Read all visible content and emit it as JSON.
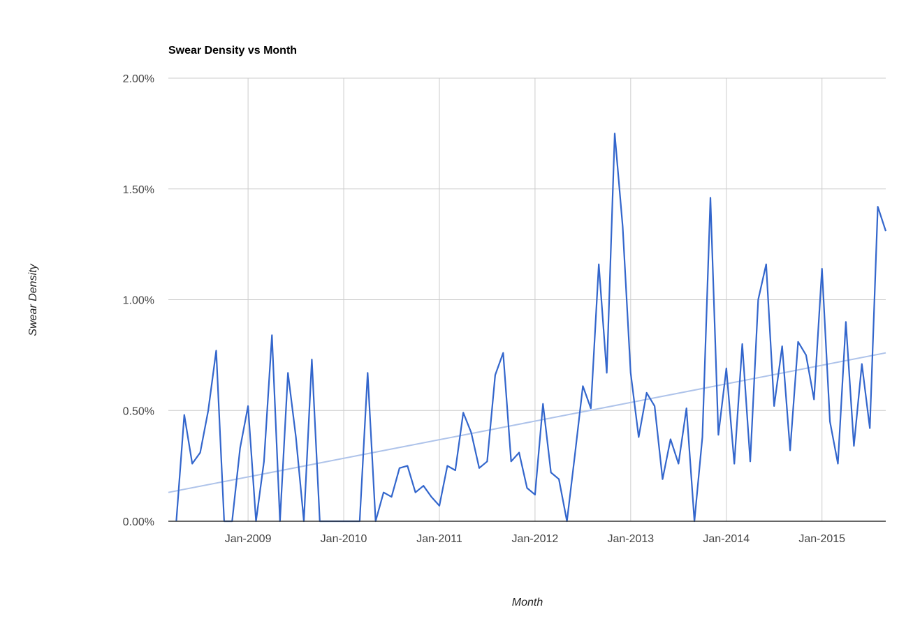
{
  "chart_data": {
    "type": "line",
    "title": "Swear Density vs Month",
    "xlabel": "Month",
    "ylabel": "Swear Density",
    "x_range": [
      "2008-03",
      "2015-09"
    ],
    "ylim": [
      0,
      2.0
    ],
    "y_ticks": [
      "0.00%",
      "0.50%",
      "1.00%",
      "1.50%",
      "2.00%"
    ],
    "x_ticks": [
      {
        "label": "Jan-2009",
        "date": "2009-01"
      },
      {
        "label": "Jan-2010",
        "date": "2010-01"
      },
      {
        "label": "Jan-2011",
        "date": "2011-01"
      },
      {
        "label": "Jan-2012",
        "date": "2012-01"
      },
      {
        "label": "Jan-2013",
        "date": "2013-01"
      },
      {
        "label": "Jan-2014",
        "date": "2014-01"
      },
      {
        "label": "Jan-2015",
        "date": "2015-01"
      }
    ],
    "grid": true,
    "legend": "none",
    "series": [
      {
        "color": "#3366cc",
        "x": [
          "2008-04",
          "2008-05",
          "2008-06",
          "2008-07",
          "2008-08",
          "2008-09",
          "2008-10",
          "2008-11",
          "2008-12",
          "2009-01",
          "2009-02",
          "2009-03",
          "2009-04",
          "2009-05",
          "2009-06",
          "2009-07",
          "2009-08",
          "2009-09",
          "2009-10",
          "2009-11",
          "2009-12",
          "2010-01",
          "2010-02",
          "2010-03",
          "2010-04",
          "2010-05",
          "2010-06",
          "2010-07",
          "2010-08",
          "2010-09",
          "2010-10",
          "2010-11",
          "2010-12",
          "2011-01",
          "2011-02",
          "2011-03",
          "2011-04",
          "2011-05",
          "2011-06",
          "2011-07",
          "2011-08",
          "2011-09",
          "2011-10",
          "2011-11",
          "2011-12",
          "2012-01",
          "2012-02",
          "2012-03",
          "2012-04",
          "2012-05",
          "2012-06",
          "2012-07",
          "2012-08",
          "2012-09",
          "2012-10",
          "2012-11",
          "2012-12",
          "2013-01",
          "2013-02",
          "2013-03",
          "2013-04",
          "2013-05",
          "2013-06",
          "2013-07",
          "2013-08",
          "2013-09",
          "2013-10",
          "2013-11",
          "2013-12",
          "2014-01",
          "2014-02",
          "2014-03",
          "2014-04",
          "2014-05",
          "2014-06",
          "2014-07",
          "2014-08",
          "2014-09",
          "2014-10",
          "2014-11",
          "2014-12",
          "2015-01",
          "2015-02",
          "2015-03",
          "2015-04",
          "2015-05",
          "2015-06",
          "2015-07",
          "2015-08",
          "2015-09"
        ],
        "values": [
          0.0,
          0.48,
          0.26,
          0.31,
          0.5,
          0.77,
          0.0,
          0.0,
          0.33,
          0.52,
          0.0,
          0.27,
          0.84,
          0.0,
          0.67,
          0.38,
          0.0,
          0.73,
          0.0,
          0.0,
          0.0,
          0.0,
          0.0,
          0.0,
          0.67,
          0.0,
          0.13,
          0.11,
          0.24,
          0.25,
          0.13,
          0.16,
          0.11,
          0.07,
          0.25,
          0.23,
          0.49,
          0.4,
          0.24,
          0.27,
          0.66,
          0.76,
          0.27,
          0.31,
          0.15,
          0.12,
          0.53,
          0.22,
          0.19,
          0.0,
          0.3,
          0.61,
          0.51,
          1.16,
          0.67,
          1.75,
          1.33,
          0.67,
          0.38,
          0.58,
          0.52,
          0.19,
          0.37,
          0.26,
          0.51,
          0.0,
          0.38,
          1.46,
          0.39,
          0.69,
          0.26,
          0.8,
          0.27,
          1.0,
          1.16,
          0.52,
          0.79,
          0.32,
          0.81,
          0.75,
          0.55,
          1.14,
          0.45,
          0.26,
          0.9,
          0.34,
          0.71,
          0.42,
          1.42,
          1.31
        ]
      },
      {
        "name": "Trendline",
        "color": "#aec3ea",
        "x": [
          "2008-03",
          "2015-09"
        ],
        "values": [
          0.13,
          0.76
        ]
      }
    ]
  }
}
